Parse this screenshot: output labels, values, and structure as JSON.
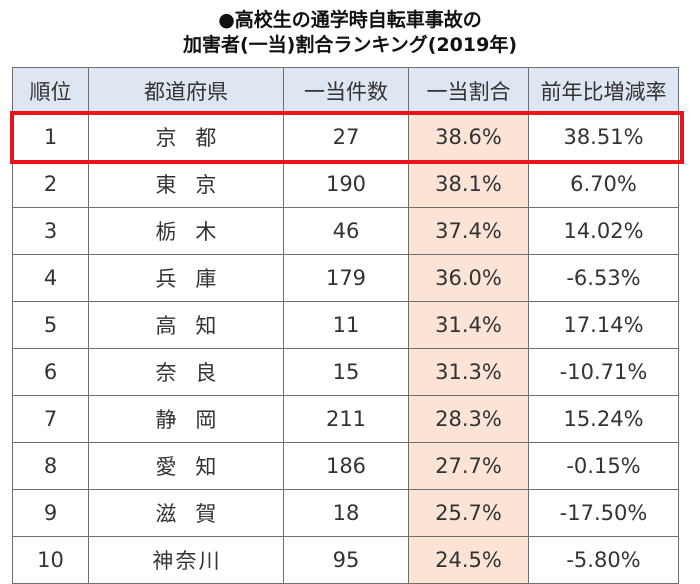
{
  "title_line1": "●高校生の通学時自転車事故の",
  "title_line2": "加害者(一当)割合ランキング(2019年)",
  "highlight_color": "#e8141a",
  "header_bg": "#dde6f1",
  "share_bg": "#fbe3d6",
  "chart_data": {
    "type": "table",
    "columns": [
      "順位",
      "都道府県",
      "一当件数",
      "一当割合",
      "前年比増減率"
    ],
    "rows": [
      {
        "rank": "1",
        "pref": "京都",
        "count": "27",
        "share": "38.6%",
        "yoy": "38.51%"
      },
      {
        "rank": "2",
        "pref": "東京",
        "count": "190",
        "share": "38.1%",
        "yoy": "6.70%"
      },
      {
        "rank": "3",
        "pref": "栃木",
        "count": "46",
        "share": "37.4%",
        "yoy": "14.02%"
      },
      {
        "rank": "4",
        "pref": "兵庫",
        "count": "179",
        "share": "36.0%",
        "yoy": "-6.53%"
      },
      {
        "rank": "5",
        "pref": "高知",
        "count": "11",
        "share": "31.4%",
        "yoy": "17.14%"
      },
      {
        "rank": "6",
        "pref": "奈良",
        "count": "15",
        "share": "31.3%",
        "yoy": "-10.71%"
      },
      {
        "rank": "7",
        "pref": "静岡",
        "count": "211",
        "share": "28.3%",
        "yoy": "15.24%"
      },
      {
        "rank": "8",
        "pref": "愛知",
        "count": "186",
        "share": "27.7%",
        "yoy": "-0.15%"
      },
      {
        "rank": "9",
        "pref": "滋賀",
        "count": "18",
        "share": "25.7%",
        "yoy": "-17.50%"
      },
      {
        "rank": "10",
        "pref": "神奈川",
        "count": "95",
        "share": "24.5%",
        "yoy": "-5.80%"
      }
    ],
    "highlighted_rank": "1"
  }
}
